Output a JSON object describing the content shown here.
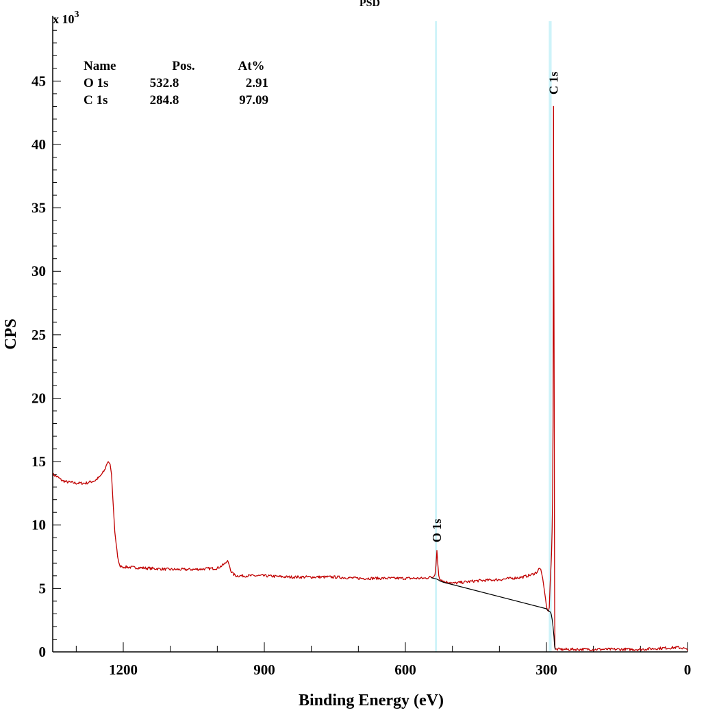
{
  "chart_data": {
    "type": "line",
    "title": "PSD",
    "xlabel": "Binding Energy (eV)",
    "ylabel": "CPS",
    "y_multiplier": "x 10",
    "y_multiplier_exp": "3",
    "xlim": [
      1350,
      0
    ],
    "ylim": [
      0,
      49.5
    ],
    "x_reversed": true,
    "x_ticks": [
      1200,
      900,
      600,
      300,
      0
    ],
    "y_ticks": [
      0,
      5,
      10,
      15,
      20,
      25,
      30,
      35,
      40,
      45
    ],
    "grid": false,
    "highlight_bands": [
      {
        "x": [
          537,
          533
        ]
      },
      {
        "x": [
          295,
          289
        ]
      }
    ],
    "peak_labels": [
      {
        "label": "O 1s",
        "x": 532.8,
        "y": 8.2
      },
      {
        "label": "C 1s",
        "x": 284.8,
        "y": 43.5
      }
    ],
    "quant_table": {
      "headers": [
        "Name",
        "Pos.",
        "At%"
      ],
      "rows": [
        [
          "O 1s",
          "532.8",
          "2.91"
        ],
        [
          "C 1s",
          "284.8",
          "97.09"
        ]
      ]
    },
    "series": [
      {
        "color": "#c00000",
        "x": [
          1350,
          1340,
          1330,
          1320,
          1300,
          1280,
          1260,
          1250,
          1240,
          1235,
          1232,
          1228,
          1225,
          1222,
          1218,
          1212,
          1208,
          1203,
          1200,
          1150,
          1100,
          1050,
          1000,
          990,
          982,
          978,
          975,
          970,
          965,
          960,
          950,
          900,
          850,
          800,
          750,
          700,
          650,
          600,
          560,
          545,
          540,
          537,
          535,
          533,
          531,
          529,
          527,
          520,
          515,
          505,
          500,
          450,
          400,
          350,
          330,
          320,
          315,
          312,
          308,
          305,
          302,
          300,
          298,
          296,
          294,
          292,
          290,
          289,
          288,
          287,
          286,
          285.5,
          285,
          284.5,
          284,
          283.5,
          283,
          282.5,
          282,
          281.5,
          281,
          280,
          275,
          270,
          200,
          100,
          50,
          20,
          10,
          5,
          0
        ],
        "y": [
          14.0,
          13.8,
          13.5,
          13.4,
          13.3,
          13.3,
          13.5,
          13.8,
          14.3,
          14.8,
          15.0,
          14.8,
          14.0,
          12.0,
          9.5,
          7.5,
          6.8,
          6.7,
          6.7,
          6.6,
          6.5,
          6.5,
          6.6,
          6.8,
          7.0,
          7.2,
          6.9,
          6.3,
          6.1,
          6.0,
          6.0,
          6.0,
          5.9,
          5.9,
          5.9,
          5.8,
          5.8,
          5.8,
          5.8,
          5.9,
          5.9,
          6.1,
          6.8,
          8.0,
          6.9,
          6.0,
          5.8,
          5.6,
          5.5,
          5.5,
          5.4,
          5.6,
          5.7,
          5.9,
          6.1,
          6.3,
          6.6,
          6.5,
          5.8,
          5.0,
          4.2,
          3.6,
          3.3,
          3.2,
          3.5,
          5.5,
          7.0,
          8.0,
          9.5,
          12.0,
          18.0,
          28.0,
          43.0,
          33.8,
          27.5,
          20.0,
          10.0,
          3.0,
          0.5,
          0.25,
          0.2,
          0.2,
          0.2,
          0.2,
          0.2,
          0.2,
          0.3,
          0.35,
          0.3,
          0.25,
          0.1
        ]
      },
      {
        "color": "#000000",
        "x": [
          545,
          540,
          537,
          535,
          533,
          531,
          529,
          527,
          520,
          300,
          298,
          296,
          294,
          292,
          290,
          288,
          286,
          284,
          283,
          282.5,
          282,
          281.5,
          281
        ],
        "y": [
          5.85,
          5.8,
          5.78,
          5.76,
          5.74,
          5.7,
          5.66,
          5.6,
          5.5,
          3.4,
          3.3,
          3.25,
          3.2,
          3.15,
          3.0,
          2.6,
          2.0,
          1.2,
          0.6,
          0.4,
          0.3,
          0.25,
          0.2
        ]
      }
    ]
  }
}
